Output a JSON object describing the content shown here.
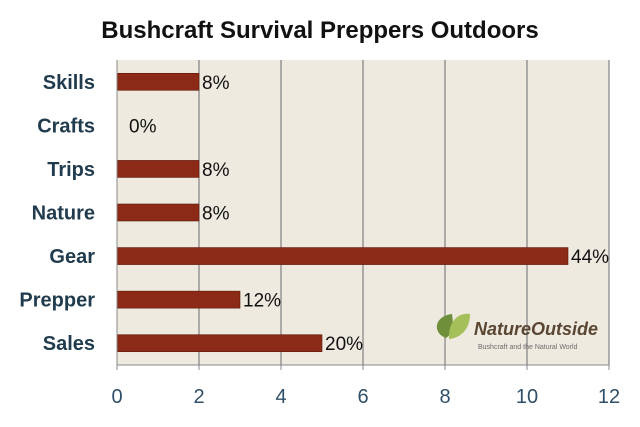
{
  "chart_data": {
    "type": "bar",
    "orientation": "horizontal",
    "title": "Bushcraft Survival Preppers Outdoors",
    "categories": [
      "Skills",
      "Crafts",
      "Trips",
      "Nature",
      "Gear",
      "Prepper",
      "Sales"
    ],
    "values": [
      2,
      0,
      2,
      2,
      11,
      3,
      5
    ],
    "data_labels": [
      "8%",
      "0%",
      "8%",
      "8%",
      "44%",
      "12%",
      "20%"
    ],
    "xlim": [
      0,
      12
    ],
    "x_ticks": [
      "0",
      "2",
      "4",
      "6",
      "8",
      "10",
      "12"
    ],
    "grid": "vertical",
    "legend": "none"
  },
  "colors": {
    "bar": "#8b2a16",
    "plot_background": "#eeeae0",
    "gridline": "#6b6b6b",
    "axis": "#8a8a8a",
    "logo_leaf_dark": "#6f8f3a",
    "logo_leaf_light": "#a5bf5a"
  },
  "watermark": {
    "name": "NatureOutside",
    "tagline": "Bushcraft and the Natural World"
  }
}
